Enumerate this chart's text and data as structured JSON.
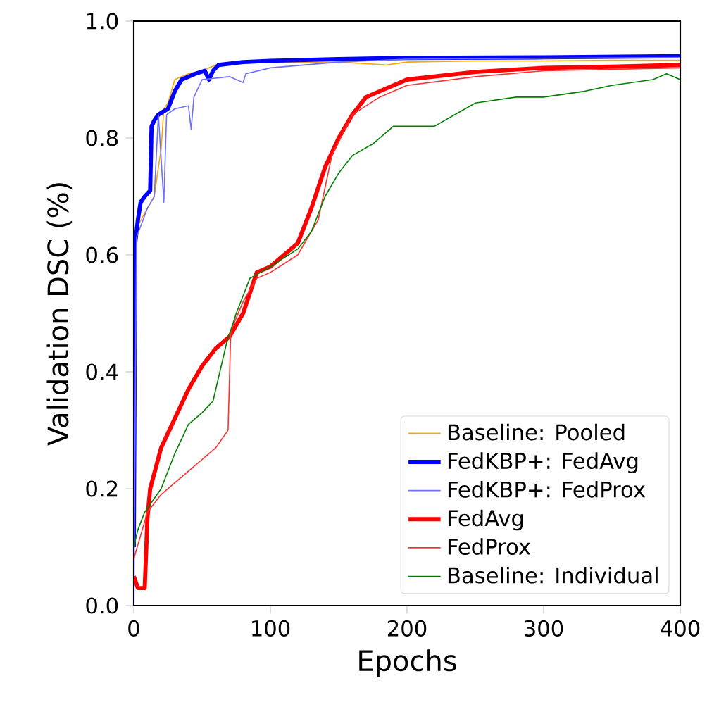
{
  "chart_data": {
    "type": "line",
    "xlabel": "Epochs",
    "ylabel": "Validation DSC (%)",
    "xlim": [
      0,
      400
    ],
    "ylim": [
      0,
      1.0
    ],
    "xticks": [
      0,
      100,
      200,
      300,
      400
    ],
    "yticks": [
      {
        "value": 0,
        "label": "0.0"
      },
      {
        "value": 0.2,
        "label": "0.2"
      },
      {
        "value": 0.4,
        "label": "0.4"
      },
      {
        "value": 0.6,
        "label": "0.6"
      },
      {
        "value": 0.8,
        "label": "0.8"
      },
      {
        "value": 1.0,
        "label": "1.0"
      }
    ],
    "grid": false,
    "legend": "bottom right",
    "marker": "none",
    "line_style": "solid",
    "series": [
      {
        "name": "Baseline: Pooled",
        "color": "#ffa500",
        "x": [
          0,
          1,
          3,
          10,
          15,
          18,
          20,
          22,
          25,
          30,
          40,
          50,
          60,
          80,
          100,
          150,
          185,
          200,
          250,
          300,
          350,
          400
        ],
        "values": [
          0.0,
          0.6,
          0.65,
          0.68,
          0.7,
          0.75,
          0.78,
          0.85,
          0.86,
          0.9,
          0.91,
          0.915,
          0.925,
          0.928,
          0.93,
          0.93,
          0.925,
          0.93,
          0.932,
          0.932,
          0.933,
          0.933
        ]
      },
      {
        "name": "FedKBP+: FedAvg",
        "color": "#0000ff",
        "x": [
          0,
          1,
          3,
          5,
          8,
          12,
          13,
          15,
          18,
          25,
          30,
          35,
          45,
          52,
          55,
          58,
          62,
          80,
          100,
          150,
          200,
          300,
          400
        ],
        "values": [
          0.1,
          0.62,
          0.66,
          0.69,
          0.7,
          0.71,
          0.82,
          0.83,
          0.84,
          0.85,
          0.88,
          0.9,
          0.91,
          0.915,
          0.9,
          0.915,
          0.925,
          0.93,
          0.932,
          0.935,
          0.937,
          0.938,
          0.94
        ]
      },
      {
        "name": "FedKBP+: FedProx",
        "color": "#6f6fff",
        "x": [
          0,
          2,
          10,
          15,
          18,
          22,
          24,
          30,
          40,
          42,
          44,
          50,
          70,
          80,
          82,
          100,
          150,
          200,
          400
        ],
        "values": [
          0.0,
          0.63,
          0.68,
          0.7,
          0.84,
          0.69,
          0.84,
          0.85,
          0.855,
          0.815,
          0.87,
          0.9,
          0.905,
          0.895,
          0.91,
          0.92,
          0.93,
          0.935,
          0.938
        ]
      },
      {
        "name": "FedAvg",
        "color": "#ff0000",
        "x": [
          0,
          3,
          8,
          10,
          12,
          20,
          30,
          40,
          50,
          60,
          70,
          80,
          90,
          100,
          110,
          120,
          130,
          140,
          150,
          160,
          170,
          180,
          200,
          250,
          300,
          350,
          400
        ],
        "values": [
          0.05,
          0.03,
          0.03,
          0.15,
          0.2,
          0.27,
          0.32,
          0.37,
          0.41,
          0.44,
          0.46,
          0.5,
          0.57,
          0.58,
          0.6,
          0.62,
          0.68,
          0.75,
          0.8,
          0.84,
          0.87,
          0.88,
          0.9,
          0.913,
          0.92,
          0.922,
          0.925
        ]
      },
      {
        "name": "FedProx",
        "color": "#ff3030",
        "x": [
          0,
          5,
          10,
          20,
          30,
          40,
          50,
          60,
          69,
          71,
          80,
          90,
          100,
          120,
          135,
          145,
          160,
          180,
          200,
          250,
          300,
          400
        ],
        "values": [
          0.08,
          0.12,
          0.16,
          0.19,
          0.21,
          0.23,
          0.25,
          0.27,
          0.3,
          0.47,
          0.52,
          0.56,
          0.57,
          0.6,
          0.66,
          0.77,
          0.84,
          0.87,
          0.89,
          0.905,
          0.915,
          0.92
        ]
      },
      {
        "name": "Baseline: Individual",
        "color": "#008000",
        "x": [
          0,
          3,
          8,
          20,
          30,
          40,
          50,
          58,
          68,
          75,
          85,
          100,
          120,
          130,
          140,
          150,
          160,
          175,
          190,
          220,
          250,
          280,
          300,
          330,
          350,
          380,
          390,
          400
        ],
        "values": [
          0.1,
          0.13,
          0.16,
          0.2,
          0.26,
          0.31,
          0.33,
          0.35,
          0.45,
          0.5,
          0.56,
          0.58,
          0.61,
          0.64,
          0.7,
          0.74,
          0.77,
          0.79,
          0.82,
          0.82,
          0.86,
          0.87,
          0.87,
          0.88,
          0.89,
          0.9,
          0.91,
          0.9
        ]
      }
    ]
  }
}
